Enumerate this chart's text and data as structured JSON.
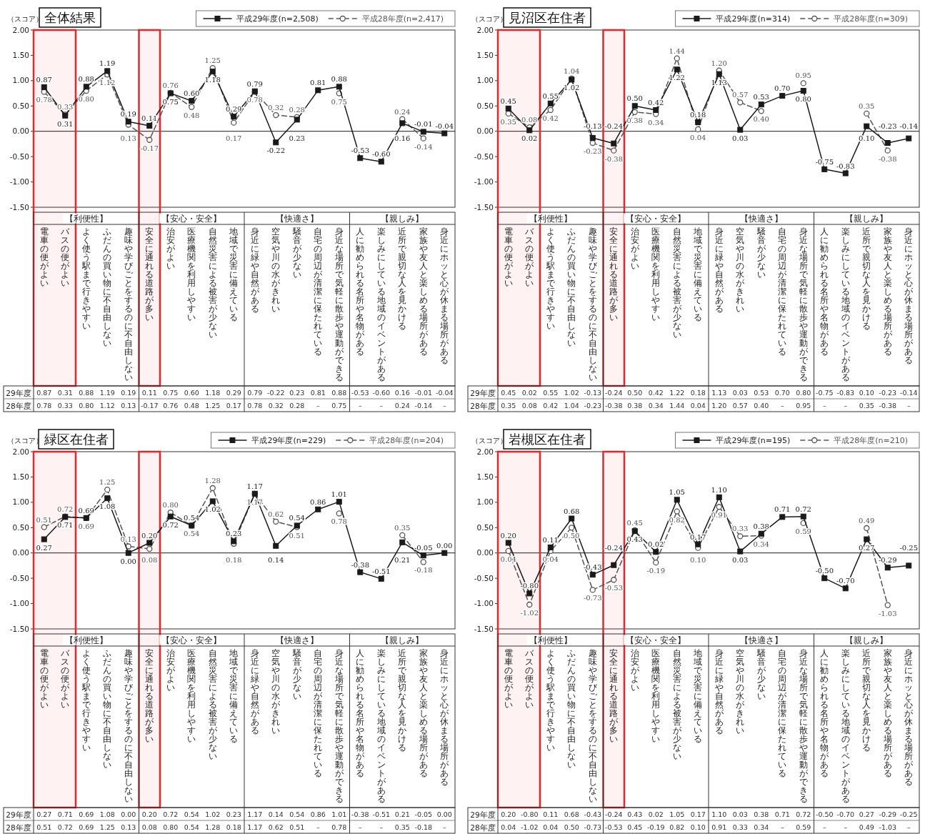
{
  "chart_data": [
    {
      "type": "line",
      "title": "全体結果",
      "ylabel": "（スコア）",
      "legend": "top right",
      "categories": [
        "電車の便がよい",
        "バスの便がよい",
        "よく使う駅まで行きやすい",
        "ふだんの買い物に不自由しない",
        "趣味や学びごとをするのに不自由しない",
        "安全に通れる道路が多い",
        "治安がよい",
        "医療機関を利用しやすい",
        "自然災害による被害が少ない",
        "地域で災害に備えている",
        "身近に緑や自然がある",
        "空気や川の水がきれい",
        "騒音が少ない",
        "自宅の周辺が清潔に保たれている",
        "身近な場所で気軽に散歩や運動ができる",
        "人に勧められる名所や名物がある",
        "楽しみにしている地域のイベントがある",
        "近所で親切な人を見かける",
        "家族や友人と楽しめる場所がある",
        "身近にホッと心が休まる場所がある"
      ],
      "series": [
        {
          "name": "平成29年度(n=2,508)",
          "color": "#1a1a1a",
          "marker": "square",
          "line_style": "solid",
          "values": [
            0.87,
            0.31,
            0.88,
            1.19,
            0.19,
            0.11,
            0.75,
            0.6,
            1.18,
            0.29,
            0.79,
            -0.22,
            0.23,
            0.81,
            0.88,
            -0.53,
            -0.6,
            0.16,
            -0.01,
            -0.04
          ],
          "value_labels": [
            "0.87",
            "0.31",
            "0.88",
            "1.19",
            "0.19",
            "0.11",
            "0.75",
            "0.60",
            "1.18",
            "0.29",
            "0.79",
            "-0.22",
            "0.23",
            "0.81",
            "0.88",
            "-0.53",
            "-0.60",
            "0.16",
            "-0.01",
            "-0.04"
          ]
        },
        {
          "name": "平成28年度(n=2,417)",
          "color": "#555555",
          "marker": "circle",
          "line_style": "dashed",
          "values": [
            0.78,
            0.33,
            0.8,
            1.12,
            0.13,
            -0.17,
            0.76,
            0.48,
            1.25,
            0.17,
            0.78,
            0.32,
            0.28,
            null,
            0.75,
            null,
            null,
            0.24,
            -0.14,
            null
          ],
          "value_labels": [
            "0.78",
            "0.33",
            "0.80",
            "1.12",
            "0.13",
            "-0.17",
            "0.76",
            "0.48",
            "1.25",
            "0.17",
            "0.78",
            "0.32",
            "0.28",
            "–",
            "0.75",
            "–",
            "–",
            "0.24",
            "-0.14",
            "–"
          ]
        }
      ],
      "ylim": [
        -1.5,
        2
      ],
      "yticks": [
        {
          "value": -1.5,
          "label": "-1.50"
        },
        {
          "value": -1,
          "label": "-1.00"
        },
        {
          "value": -0.5,
          "label": "-0.50"
        },
        {
          "value": 0,
          "label": "0.00"
        },
        {
          "value": 0.5,
          "label": "0.50"
        },
        {
          "value": 1,
          "label": "1.00"
        },
        {
          "value": 1.5,
          "label": "1.50"
        },
        {
          "value": 2,
          "label": "2.00"
        }
      ],
      "ref_lines": [
        {
          "axis": "y",
          "value": 0,
          "color": "#1a1a1a"
        }
      ],
      "bands": [
        {
          "axis": "x",
          "from": "電車の便がよい",
          "to": "バスの便がよい",
          "color": "#e8262b"
        },
        {
          "axis": "x",
          "from": "安全に通れる道路が多い",
          "to": "安全に通れる道路が多い",
          "color": "#e8262b"
        }
      ],
      "annotations": [
        "【利便性】",
        "【安心・安全】",
        "【快適さ】",
        "【親しみ】",
        "29年度",
        "28年度"
      ]
    },
    {
      "type": "line",
      "title": "見沼区在住者",
      "ylabel": "（スコア）",
      "legend": "top right",
      "categories": [
        "電車の便がよい",
        "バスの便がよい",
        "よく使う駅まで行きやすい",
        "ふだんの買い物に不自由しない",
        "趣味や学びごとをするのに不自由しない",
        "安全に通れる道路が多い",
        "治安がよい",
        "医療機関を利用しやすい",
        "自然災害による被害が少ない",
        "地域で災害に備えている",
        "身近に緑や自然がある",
        "空気や川の水がきれい",
        "騒音が少ない",
        "自宅の周辺が清潔に保たれている",
        "身近な場所で気軽に散歩や運動ができる",
        "人に勧められる名所や名物がある",
        "楽しみにしている地域のイベントがある",
        "近所で親切な人を見かける",
        "家族や友人と楽しめる場所がある",
        "身近にホッと心が休まる場所がある"
      ],
      "series": [
        {
          "name": "平成29年度(n=314)",
          "color": "#1a1a1a",
          "marker": "square",
          "line_style": "solid",
          "values": [
            0.45,
            0.02,
            0.55,
            1.02,
            -0.13,
            -0.24,
            0.5,
            0.42,
            1.22,
            0.18,
            1.13,
            0.03,
            0.53,
            0.7,
            0.8,
            -0.75,
            -0.83,
            0.1,
            -0.23,
            -0.14
          ],
          "value_labels": [
            "0.45",
            "0.02",
            "0.55",
            "1.02",
            "-0.13",
            "-0.24",
            "0.50",
            "0.42",
            "1.22",
            "0.18",
            "1.13",
            "0.03",
            "0.53",
            "0.70",
            "0.80",
            "-0.75",
            "-0.83",
            "0.10",
            "-0.23",
            "-0.14"
          ]
        },
        {
          "name": "平成28年度(n=309)",
          "color": "#555555",
          "marker": "circle",
          "line_style": "dashed",
          "values": [
            0.35,
            0.08,
            0.42,
            1.04,
            -0.23,
            -0.38,
            0.38,
            0.34,
            1.44,
            0.04,
            1.2,
            0.57,
            0.4,
            null,
            0.95,
            null,
            null,
            0.35,
            -0.38,
            null
          ],
          "value_labels": [
            "0.35",
            "0.08",
            "0.42",
            "1.04",
            "-0.23",
            "-0.38",
            "0.38",
            "0.34",
            "1.44",
            "0.04",
            "1.20",
            "0.57",
            "0.40",
            "–",
            "0.95",
            "–",
            "–",
            "0.35",
            "-0.38",
            "–"
          ]
        }
      ],
      "ylim": [
        -1.5,
        2
      ],
      "yticks": [
        {
          "value": -1.5,
          "label": "-1.50"
        },
        {
          "value": -1,
          "label": "-1.00"
        },
        {
          "value": -0.5,
          "label": "-0.50"
        },
        {
          "value": 0,
          "label": "0.00"
        },
        {
          "value": 0.5,
          "label": "0.50"
        },
        {
          "value": 1,
          "label": "1.00"
        },
        {
          "value": 1.5,
          "label": "1.50"
        },
        {
          "value": 2,
          "label": "2.00"
        }
      ],
      "ref_lines": [
        {
          "axis": "y",
          "value": 0,
          "color": "#1a1a1a"
        }
      ],
      "bands": [
        {
          "axis": "x",
          "from": "電車の便がよい",
          "to": "バスの便がよい",
          "color": "#e8262b"
        },
        {
          "axis": "x",
          "from": "安全に通れる道路が多い",
          "to": "安全に通れる道路が多い",
          "color": "#e8262b"
        }
      ],
      "annotations": [
        "【利便性】",
        "【安心・安全】",
        "【快適さ】",
        "【親しみ】",
        "29年度",
        "28年度"
      ]
    },
    {
      "type": "line",
      "title": "緑区在住者",
      "ylabel": "（スコア）",
      "legend": "top right",
      "categories": [
        "電車の便がよい",
        "バスの便がよい",
        "よく使う駅まで行きやすい",
        "ふだんの買い物に不自由しない",
        "趣味や学びごとをするのに不自由しない",
        "安全に通れる道路が多い",
        "治安がよい",
        "医療機関を利用しやすい",
        "自然災害による被害が少ない",
        "地域で災害に備えている",
        "身近に緑や自然がある",
        "空気や川の水がきれい",
        "騒音が少ない",
        "自宅の周辺が清潔に保たれている",
        "身近な場所で気軽に散歩や運動ができる",
        "人に勧められる名所や名物がある",
        "楽しみにしている地域のイベントがある",
        "近所で親切な人を見かける",
        "家族や友人と楽しめる場所がある",
        "身近にホッと心が休まる場所がある"
      ],
      "series": [
        {
          "name": "平成29年度(n=229)",
          "color": "#1a1a1a",
          "marker": "square",
          "line_style": "solid",
          "values": [
            0.27,
            0.71,
            0.69,
            1.08,
            0.0,
            0.2,
            0.72,
            0.54,
            1.02,
            0.23,
            1.17,
            0.14,
            0.54,
            0.86,
            1.01,
            -0.38,
            -0.51,
            0.21,
            -0.05,
            0.0
          ],
          "value_labels": [
            "0.27",
            "0.71",
            "0.69",
            "1.08",
            "0.00",
            "0.20",
            "0.72",
            "0.54",
            "1.02",
            "0.23",
            "1.17",
            "0.14",
            "0.54",
            "0.86",
            "1.01",
            "-0.38",
            "-0.51",
            "0.21",
            "-0.05",
            "0.00"
          ]
        },
        {
          "name": "平成28年度(n=204)",
          "color": "#555555",
          "marker": "circle",
          "line_style": "dashed",
          "values": [
            0.51,
            0.72,
            0.69,
            1.25,
            0.13,
            0.08,
            0.8,
            0.54,
            1.28,
            0.18,
            1.17,
            0.62,
            0.51,
            null,
            0.78,
            null,
            null,
            0.35,
            -0.18,
            null
          ],
          "value_labels": [
            "0.51",
            "0.72",
            "0.69",
            "1.25",
            "0.13",
            "0.08",
            "0.80",
            "0.54",
            "1.28",
            "0.18",
            "1.17",
            "0.62",
            "0.51",
            "–",
            "0.78",
            "–",
            "–",
            "0.35",
            "-0.18",
            "–"
          ]
        }
      ],
      "ylim": [
        -1.5,
        2
      ],
      "yticks": [
        {
          "value": -1.5,
          "label": "-1.50"
        },
        {
          "value": -1,
          "label": "-1.00"
        },
        {
          "value": -0.5,
          "label": "-0.50"
        },
        {
          "value": 0,
          "label": "0.00"
        },
        {
          "value": 0.5,
          "label": "0.50"
        },
        {
          "value": 1,
          "label": "1.00"
        },
        {
          "value": 1.5,
          "label": "1.50"
        },
        {
          "value": 2,
          "label": "2.00"
        }
      ],
      "ref_lines": [
        {
          "axis": "y",
          "value": 0,
          "color": "#1a1a1a"
        }
      ],
      "bands": [
        {
          "axis": "x",
          "from": "電車の便がよい",
          "to": "バスの便がよい",
          "color": "#e8262b"
        },
        {
          "axis": "x",
          "from": "安全に通れる道路が多い",
          "to": "安全に通れる道路が多い",
          "color": "#e8262b"
        }
      ],
      "annotations": [
        "【利便性】",
        "【安心・安全】",
        "【快適さ】",
        "【親しみ】",
        "29年度",
        "28年度"
      ]
    },
    {
      "type": "line",
      "title": "岩槻区在住者",
      "ylabel": "（スコア）",
      "legend": "top right",
      "categories": [
        "電車の便がよい",
        "バスの便がよい",
        "よく使う駅まで行きやすい",
        "ふだんの買い物に不自由しない",
        "趣味や学びごとをするのに不自由しない",
        "安全に通れる道路が多い",
        "治安がよい",
        "医療機関を利用しやすい",
        "自然災害による被害が少ない",
        "地域で災害に備えている",
        "身近に緑や自然がある",
        "空気や川の水がきれい",
        "騒音が少ない",
        "自宅の周辺が清潔に保たれている",
        "身近な場所で気軽に散歩や運動ができる",
        "人に勧められる名所や名物がある",
        "楽しみにしている地域のイベントがある",
        "近所で親切な人を見かける",
        "家族や友人と楽しめる場所がある",
        "身近にホッと心が休まる場所がある"
      ],
      "series": [
        {
          "name": "平成29年度(n=195)",
          "color": "#1a1a1a",
          "marker": "square",
          "line_style": "solid",
          "values": [
            0.2,
            -0.8,
            0.11,
            0.68,
            -0.43,
            -0.24,
            0.43,
            0.02,
            1.05,
            0.17,
            1.1,
            0.03,
            0.38,
            0.71,
            0.72,
            -0.5,
            -0.7,
            0.27,
            -0.29,
            -0.25
          ],
          "value_labels": [
            "0.20",
            "-0.80",
            "0.11",
            "0.68",
            "-0.43",
            "-0.24",
            "0.43",
            "0.02",
            "1.05",
            "0.17",
            "1.10",
            "0.03",
            "0.38",
            "0.71",
            "0.72",
            "-0.50",
            "-0.70",
            "0.27",
            "-0.29",
            "-0.25"
          ]
        },
        {
          "name": "平成28年度(n=210)",
          "color": "#555555",
          "marker": "circle",
          "line_style": "dashed",
          "values": [
            0.04,
            -1.02,
            0.04,
            0.5,
            -0.73,
            -0.53,
            0.45,
            -0.19,
            0.82,
            0.1,
            0.91,
            0.33,
            0.34,
            null,
            0.59,
            null,
            null,
            0.49,
            -1.03,
            null
          ],
          "value_labels": [
            "0.04",
            "-1.02",
            "0.04",
            "0.50",
            "-0.73",
            "-0.53",
            "0.45",
            "-0.19",
            "0.82",
            "0.10",
            "0.91",
            "0.33",
            "0.34",
            "–",
            "0.59",
            "–",
            "–",
            "0.49",
            "-1.03",
            "–"
          ]
        }
      ],
      "ylim": [
        -1.5,
        2
      ],
      "yticks": [
        {
          "value": -1.5,
          "label": "-1.50"
        },
        {
          "value": -1,
          "label": "-1.00"
        },
        {
          "value": -0.5,
          "label": "-0.50"
        },
        {
          "value": 0,
          "label": "0.00"
        },
        {
          "value": 0.5,
          "label": "0.50"
        },
        {
          "value": 1,
          "label": "1.00"
        },
        {
          "value": 1.5,
          "label": "1.50"
        },
        {
          "value": 2,
          "label": "2.00"
        }
      ],
      "ref_lines": [
        {
          "axis": "y",
          "value": 0,
          "color": "#1a1a1a"
        }
      ],
      "bands": [
        {
          "axis": "x",
          "from": "電車の便がよい",
          "to": "バスの便がよい",
          "color": "#e8262b"
        },
        {
          "axis": "x",
          "from": "安全に通れる道路が多い",
          "to": "安全に通れる道路が多い",
          "color": "#e8262b"
        }
      ],
      "annotations": [
        "【利便性】",
        "【安心・安全】",
        "【快適さ】",
        "【親しみ】",
        "29年度",
        "28年度"
      ]
    }
  ]
}
